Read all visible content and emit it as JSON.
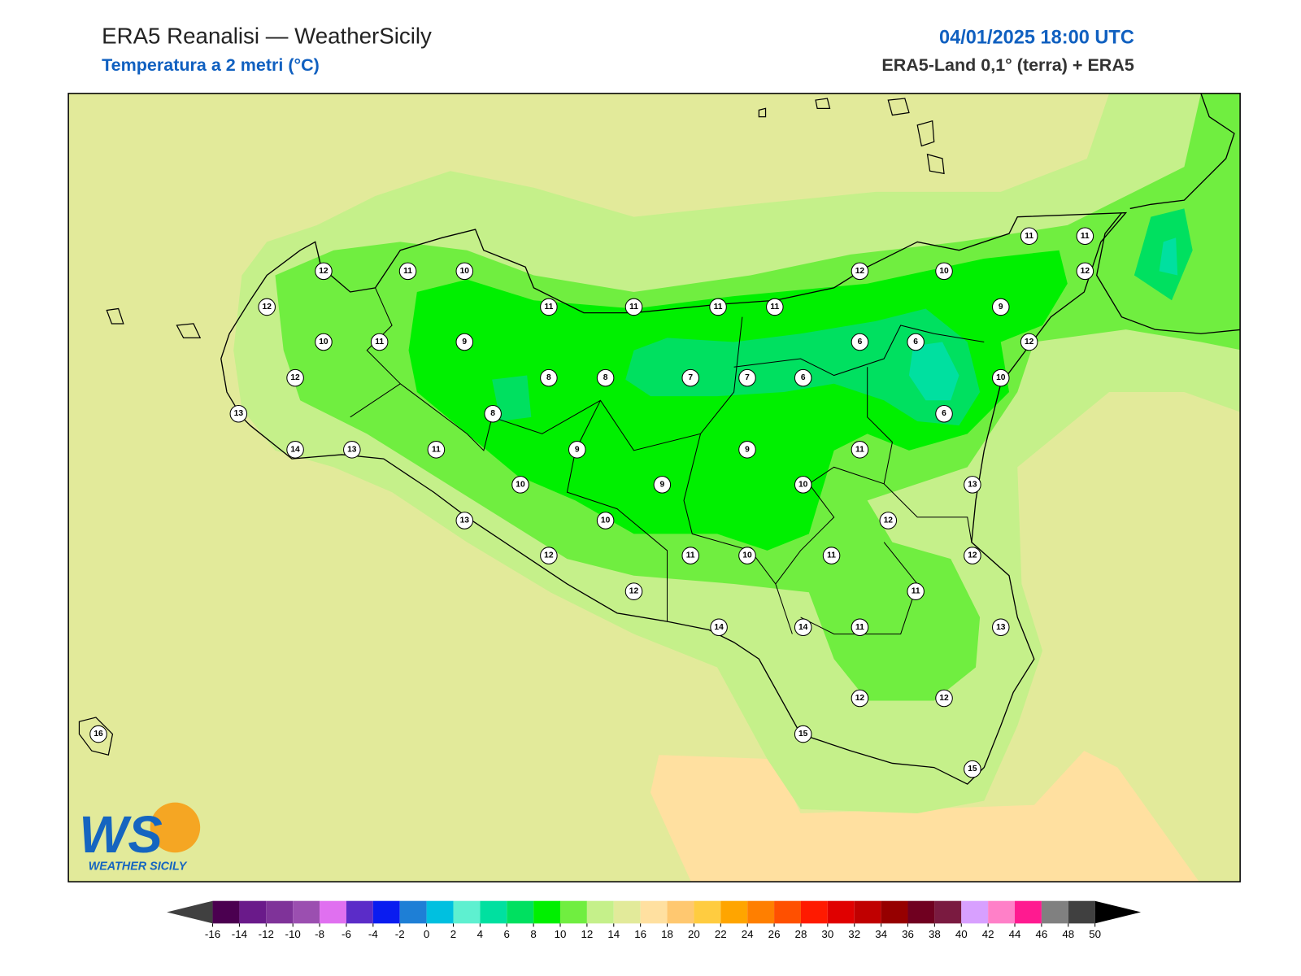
{
  "header": {
    "title": "ERA5 Reanalisi — WeatherSicily",
    "subtitle": "Temperatura a 2 metri (°C)",
    "datetime": "04/01/2025 18:00 UTC",
    "source": "ERA5-Land 0,1° (terra) + ERA5"
  },
  "logo": {
    "letters": "WS",
    "text": "WEATHER SICILY"
  },
  "stations": [
    12,
    11,
    10,
    12,
    11,
    11,
    11,
    11,
    10,
    11,
    9,
    12,
    8,
    8,
    7,
    7,
    6,
    13,
    8,
    14,
    13,
    11,
    9,
    9,
    10,
    9,
    10,
    13,
    10,
    12,
    11,
    10,
    11,
    12,
    14,
    14,
    11,
    15,
    12,
    12,
    15,
    13,
    11,
    12,
    12,
    13,
    11,
    6,
    10,
    12,
    9,
    6,
    6,
    12,
    10,
    12,
    11,
    11,
    16
  ],
  "colorbar": {
    "ticks": [
      -16,
      -14,
      -12,
      -10,
      -8,
      -6,
      -4,
      -2,
      0,
      2,
      4,
      6,
      8,
      10,
      12,
      14,
      16,
      18,
      20,
      22,
      24,
      26,
      28,
      30,
      32,
      34,
      36,
      38,
      40,
      42,
      44,
      46,
      48,
      50
    ],
    "colors": [
      "#4b0050",
      "#6a1a8a",
      "#7f3399",
      "#9b4fb0",
      "#e070f0",
      "#5b2cc8",
      "#0a1cf0",
      "#1e7fd6",
      "#00c0e0",
      "#5ef0d0",
      "#00e0a0",
      "#00e060",
      "#00f000",
      "#70ee40",
      "#c5f08a",
      "#e2ea9a",
      "#ffe0a0",
      "#ffc870",
      "#ffcc40",
      "#ffa500",
      "#ff7f00",
      "#ff5000",
      "#ff1a00",
      "#e00000",
      "#c00000",
      "#960000",
      "#700020",
      "#7a1a40",
      "#d8a0ff",
      "#ff80c8",
      "#ff1a90",
      "#808080",
      "#404040"
    ],
    "under_color": "#404040",
    "over_color": "#000000"
  }
}
